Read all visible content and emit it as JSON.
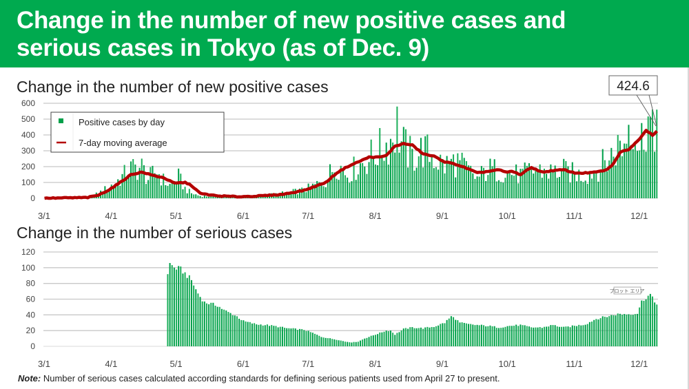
{
  "header": {
    "title_line1": "Change in the number of new positive cases and",
    "title_line2": "serious cases in Tokyo (as of Dec. 9)"
  },
  "colors": {
    "header_bg": "#00aa4f",
    "bar": "#00a04a",
    "line": "#b40000"
  },
  "note": {
    "label": "Note:",
    "text": " Number of serious cases calculated according standards for defining serious patients used from April 27 to present."
  },
  "chart_data": [
    {
      "type": "bar",
      "title": "Change in the number of new positive cases",
      "x_start": "3/1",
      "x_end": "12/9",
      "x_tick_labels": [
        "3/1",
        "4/1",
        "5/1",
        "6/1",
        "7/1",
        "8/1",
        "9/1",
        "10/1",
        "11/1",
        "12/1"
      ],
      "y_tick_labels": [
        "0",
        "100",
        "200",
        "300",
        "400",
        "500",
        "600"
      ],
      "ylim": [
        0,
        600
      ],
      "grid": true,
      "legend_position": "top-left",
      "legend": [
        "Positive cases by day",
        "7-day moving average"
      ],
      "callout": "424.6",
      "series": [
        {
          "name": "Positive cases by day",
          "kind": "bar",
          "anchors_day_value": [
            [
              0,
              0
            ],
            [
              20,
              5
            ],
            [
              25,
              30
            ],
            [
              30,
              70
            ],
            [
              35,
              120
            ],
            [
              40,
              180
            ],
            [
              45,
              190
            ],
            [
              48,
              120
            ],
            [
              52,
              170
            ],
            [
              55,
              110
            ],
            [
              58,
              80
            ],
            [
              62,
              130
            ],
            [
              65,
              60
            ],
            [
              68,
              30
            ],
            [
              72,
              15
            ],
            [
              80,
              10
            ],
            [
              90,
              5
            ],
            [
              100,
              15
            ],
            [
              110,
              30
            ],
            [
              120,
              50
            ],
            [
              125,
              80
            ],
            [
              130,
              110
            ],
            [
              135,
              220
            ],
            [
              140,
              150
            ],
            [
              145,
              200
            ],
            [
              150,
              250
            ],
            [
              155,
              300
            ],
            [
              160,
              360
            ],
            [
              163,
              450
            ],
            [
              165,
              340
            ],
            [
              170,
              250
            ],
            [
              175,
              300
            ],
            [
              180,
              250
            ],
            [
              185,
              200
            ],
            [
              190,
              230
            ],
            [
              195,
              180
            ],
            [
              200,
              120
            ],
            [
              205,
              180
            ],
            [
              210,
              170
            ],
            [
              215,
              160
            ],
            [
              220,
              140
            ],
            [
              225,
              170
            ],
            [
              230,
              170
            ],
            [
              235,
              160
            ],
            [
              240,
              170
            ],
            [
              245,
              150
            ],
            [
              250,
              140
            ],
            [
              255,
              180
            ],
            [
              260,
              230
            ],
            [
              263,
              280
            ],
            [
              265,
              320
            ],
            [
              268,
              330
            ],
            [
              270,
              480
            ],
            [
              272,
              500
            ],
            [
              275,
              300
            ],
            [
              278,
              500
            ],
            [
              280,
              450
            ],
            [
              282,
              300
            ],
            [
              283,
              560
            ]
          ]
        },
        {
          "name": "7-day moving average",
          "kind": "line",
          "anchors_day_value": [
            [
              0,
              0
            ],
            [
              20,
              5
            ],
            [
              25,
              20
            ],
            [
              30,
              55
            ],
            [
              35,
              100
            ],
            [
              40,
              150
            ],
            [
              45,
              165
            ],
            [
              50,
              145
            ],
            [
              55,
              130
            ],
            [
              60,
              95
            ],
            [
              65,
              100
            ],
            [
              68,
              80
            ],
            [
              72,
              30
            ],
            [
              80,
              15
            ],
            [
              90,
              10
            ],
            [
              100,
              15
            ],
            [
              110,
              25
            ],
            [
              120,
              50
            ],
            [
              125,
              75
            ],
            [
              130,
              100
            ],
            [
              135,
              160
            ],
            [
              140,
              200
            ],
            [
              145,
              230
            ],
            [
              150,
              260
            ],
            [
              155,
              260
            ],
            [
              158,
              270
            ],
            [
              162,
              330
            ],
            [
              166,
              345
            ],
            [
              170,
              335
            ],
            [
              175,
              280
            ],
            [
              180,
              265
            ],
            [
              185,
              230
            ],
            [
              190,
              215
            ],
            [
              195,
              190
            ],
            [
              200,
              160
            ],
            [
              205,
              170
            ],
            [
              210,
              180
            ],
            [
              213,
              165
            ],
            [
              216,
              170
            ],
            [
              220,
              150
            ],
            [
              225,
              195
            ],
            [
              230,
              165
            ],
            [
              235,
              175
            ],
            [
              240,
              180
            ],
            [
              245,
              160
            ],
            [
              250,
              160
            ],
            [
              255,
              165
            ],
            [
              260,
              180
            ],
            [
              263,
              220
            ],
            [
              266,
              290
            ],
            [
              270,
              310
            ],
            [
              274,
              360
            ],
            [
              278,
              430
            ],
            [
              281,
              400
            ],
            [
              284,
              400
            ],
            [
              288,
              450
            ],
            [
              291,
              425
            ],
            [
              294,
              420
            ],
            [
              283,
              424.6
            ]
          ]
        }
      ]
    },
    {
      "type": "bar",
      "title": "Change in the number of serious cases",
      "x_start": "3/1",
      "x_end": "12/9",
      "x_tick_labels": [
        "3/1",
        "4/1",
        "5/1",
        "6/1",
        "7/1",
        "8/1",
        "9/1",
        "10/1",
        "11/1",
        "12/1"
      ],
      "y_tick_labels": [
        "0",
        "20",
        "40",
        "60",
        "80",
        "100",
        "120"
      ],
      "ylim": [
        0,
        120
      ],
      "grid": true,
      "data_starts": "4/27",
      "tooltip": "プロット エリア",
      "series": [
        {
          "name": "Serious cases",
          "kind": "bar",
          "anchors_day_value": [
            [
              57,
              93
            ],
            [
              58,
              105
            ],
            [
              60,
              100
            ],
            [
              63,
              98
            ],
            [
              66,
              90
            ],
            [
              68,
              84
            ],
            [
              70,
              72
            ],
            [
              72,
              63
            ],
            [
              74,
              56
            ],
            [
              77,
              54
            ],
            [
              80,
              52
            ],
            [
              83,
              46
            ],
            [
              86,
              42
            ],
            [
              89,
              38
            ],
            [
              92,
              32
            ],
            [
              95,
              30
            ],
            [
              98,
              28
            ],
            [
              103,
              27
            ],
            [
              108,
              25
            ],
            [
              112,
              23
            ],
            [
              116,
              22
            ],
            [
              120,
              21
            ],
            [
              124,
              17
            ],
            [
              128,
              12
            ],
            [
              132,
              10
            ],
            [
              136,
              8
            ],
            [
              139,
              6
            ],
            [
              142,
              5
            ],
            [
              145,
              6
            ],
            [
              148,
              10
            ],
            [
              152,
              14
            ],
            [
              155,
              17
            ],
            [
              158,
              20
            ],
            [
              160,
              20
            ],
            [
              162,
              15
            ],
            [
              166,
              22
            ],
            [
              170,
              24
            ],
            [
              175,
              23
            ],
            [
              180,
              25
            ],
            [
              185,
              30
            ],
            [
              188,
              38
            ],
            [
              190,
              35
            ],
            [
              192,
              30
            ],
            [
              196,
              28
            ],
            [
              200,
              27
            ],
            [
              205,
              26
            ],
            [
              210,
              24
            ],
            [
              215,
              26
            ],
            [
              220,
              27
            ],
            [
              225,
              24
            ],
            [
              230,
              24
            ],
            [
              235,
              27
            ],
            [
              240,
              24
            ],
            [
              245,
              26
            ],
            [
              250,
              28
            ],
            [
              255,
              35
            ],
            [
              260,
              38
            ],
            [
              265,
              41
            ],
            [
              270,
              41
            ],
            [
              274,
              42
            ],
            [
              276,
              57
            ],
            [
              278,
              62
            ],
            [
              280,
              66
            ],
            [
              282,
              56
            ],
            [
              284,
              54
            ],
            [
              288,
              60
            ]
          ]
        }
      ]
    }
  ]
}
